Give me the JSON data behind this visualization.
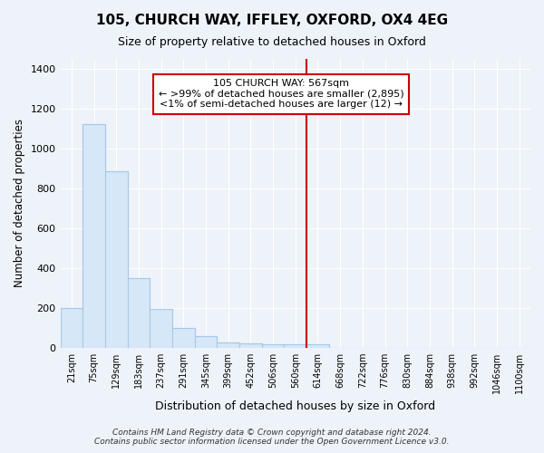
{
  "title": "105, CHURCH WAY, IFFLEY, OXFORD, OX4 4EG",
  "subtitle": "Size of property relative to detached houses in Oxford",
  "xlabel": "Distribution of detached houses by size in Oxford",
  "ylabel": "Number of detached properties",
  "bar_color": "#d6e8f7",
  "bar_edge_color": "#a8c8e8",
  "bg_color": "#eef3fa",
  "grid_color": "#ffffff",
  "vline_color": "#cc0000",
  "annotation_text": "105 CHURCH WAY: 567sqm\n← >99% of detached houses are smaller (2,895)\n<1% of semi-detached houses are larger (12) →",
  "annotation_box_color": "#ffffff",
  "annotation_box_edge": "#cc0000",
  "footer": "Contains HM Land Registry data © Crown copyright and database right 2024.\nContains public sector information licensed under the Open Government Licence v3.0.",
  "categories": [
    "21sqm",
    "75sqm",
    "129sqm",
    "183sqm",
    "237sqm",
    "291sqm",
    "345sqm",
    "399sqm",
    "452sqm",
    "506sqm",
    "560sqm",
    "614sqm",
    "668sqm",
    "722sqm",
    "776sqm",
    "830sqm",
    "884sqm",
    "938sqm",
    "992sqm",
    "1046sqm",
    "1100sqm"
  ],
  "values": [
    200,
    1120,
    885,
    350,
    195,
    100,
    57,
    25,
    20,
    15,
    15,
    15,
    0,
    0,
    0,
    0,
    0,
    0,
    0,
    0,
    0
  ],
  "ylim": [
    0,
    1450
  ],
  "yticks": [
    0,
    200,
    400,
    600,
    800,
    1000,
    1200,
    1400
  ],
  "vline_bin_index": 10
}
